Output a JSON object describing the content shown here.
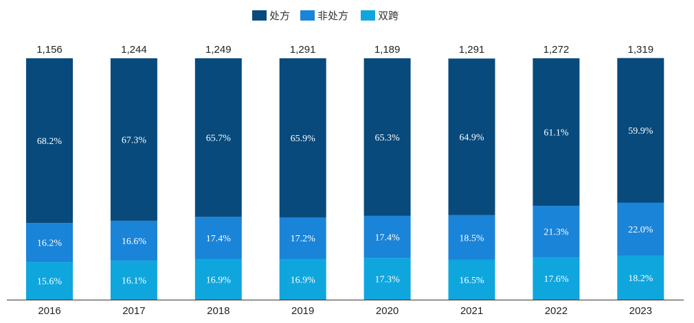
{
  "chart_data": {
    "type": "bar",
    "stacked": true,
    "normalized": true,
    "categories": [
      "2016",
      "2017",
      "2018",
      "2019",
      "2020",
      "2021",
      "2022",
      "2023"
    ],
    "totals": [
      "1,156",
      "1,244",
      "1,249",
      "1,291",
      "1,189",
      "1,291",
      "1,272",
      "1,319"
    ],
    "series": [
      {
        "name": "双跨",
        "color": "#0fa6de",
        "values": [
          15.6,
          16.1,
          16.9,
          16.9,
          17.3,
          16.5,
          17.6,
          18.2
        ],
        "labels": [
          "15.6%",
          "16.1%",
          "16.9%",
          "16.9%",
          "17.3%",
          "16.5%",
          "17.6%",
          "18.2%"
        ]
      },
      {
        "name": "非处方",
        "color": "#1a84d8",
        "values": [
          16.2,
          16.6,
          17.4,
          17.2,
          17.4,
          18.5,
          21.3,
          22.0
        ],
        "labels": [
          "16.2%",
          "16.6%",
          "17.4%",
          "17.2%",
          "17.4%",
          "18.5%",
          "21.3%",
          "22.0%"
        ]
      },
      {
        "name": "处方",
        "color": "#084a7c",
        "values": [
          68.2,
          67.3,
          65.7,
          65.9,
          65.3,
          64.9,
          61.1,
          59.9
        ],
        "labels": [
          "68.2%",
          "67.3%",
          "65.7%",
          "65.9%",
          "65.3%",
          "64.9%",
          "61.1%",
          "59.9%"
        ]
      }
    ],
    "legend": {
      "position": "top-center",
      "order": [
        "处方",
        "非处方",
        "双跨"
      ]
    },
    "xlabel": "",
    "ylabel": "",
    "ylim": [
      0,
      100
    ],
    "grid": false
  }
}
